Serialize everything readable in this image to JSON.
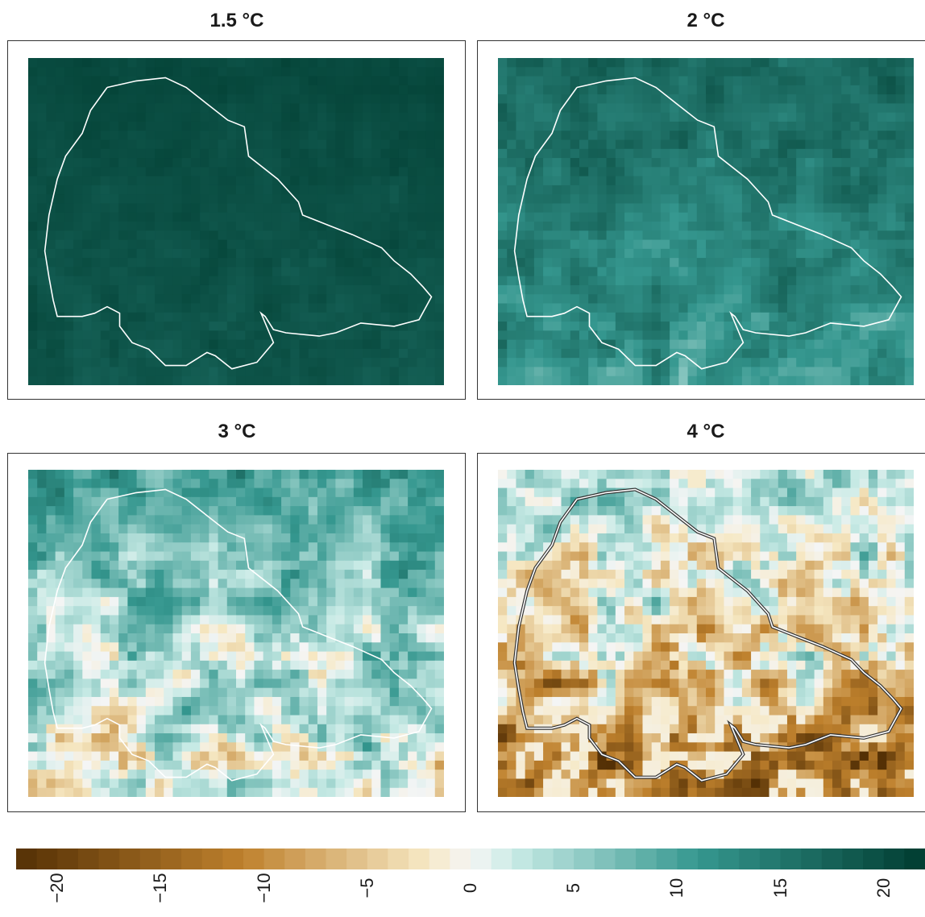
{
  "panels": [
    {
      "title": "1.5 °C",
      "intensity": 0.08,
      "boundary_style": "single"
    },
    {
      "title": "2 °C",
      "intensity": 0.25,
      "boundary_style": "single"
    },
    {
      "title": "3 °C",
      "intensity": 0.55,
      "boundary_style": "single"
    },
    {
      "title": "4 °C",
      "intensity": 0.8,
      "boundary_style": "double"
    }
  ],
  "legend": {
    "min": -22,
    "max": 22,
    "steps": 44,
    "ticks": [
      "−20",
      "−15",
      "−10",
      "−5",
      "0",
      "5",
      "10",
      "15",
      "20"
    ],
    "tick_values": [
      -20,
      -15,
      -10,
      -5,
      0,
      5,
      10,
      15,
      20
    ]
  },
  "colors": {
    "brown_dark": "#543005",
    "brown_mid": "#bf812d",
    "tan_light": "#f6e8c3",
    "neutral": "#f5f5f5",
    "teal_light": "#c7eae5",
    "teal_mid": "#35978f",
    "teal_dark": "#003c30",
    "boundary": "#ffffff"
  }
}
